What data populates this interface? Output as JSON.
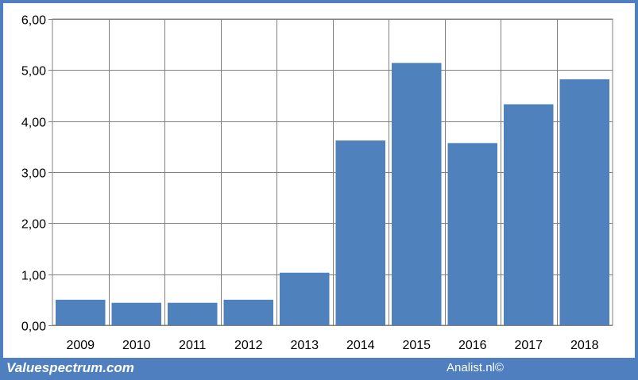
{
  "chart_data": {
    "type": "bar",
    "categories": [
      "2009",
      "2010",
      "2011",
      "2012",
      "2013",
      "2014",
      "2015",
      "2016",
      "2017",
      "2018"
    ],
    "values": [
      0.5,
      0.44,
      0.44,
      0.5,
      1.03,
      3.62,
      5.14,
      3.57,
      4.33,
      4.82
    ],
    "title": "",
    "xlabel": "",
    "ylabel": "",
    "ylim": [
      0,
      6
    ],
    "yticks": [
      "0,00",
      "1,00",
      "2,00",
      "3,00",
      "4,00",
      "5,00",
      "6,00"
    ],
    "grid": true,
    "bar_color": "#4f81bd",
    "grid_color": "#808080"
  },
  "footer": {
    "left_text": "Valuespectrum.com",
    "right_text": "Analist.nl©"
  },
  "frame_color": "#4f7fbf"
}
